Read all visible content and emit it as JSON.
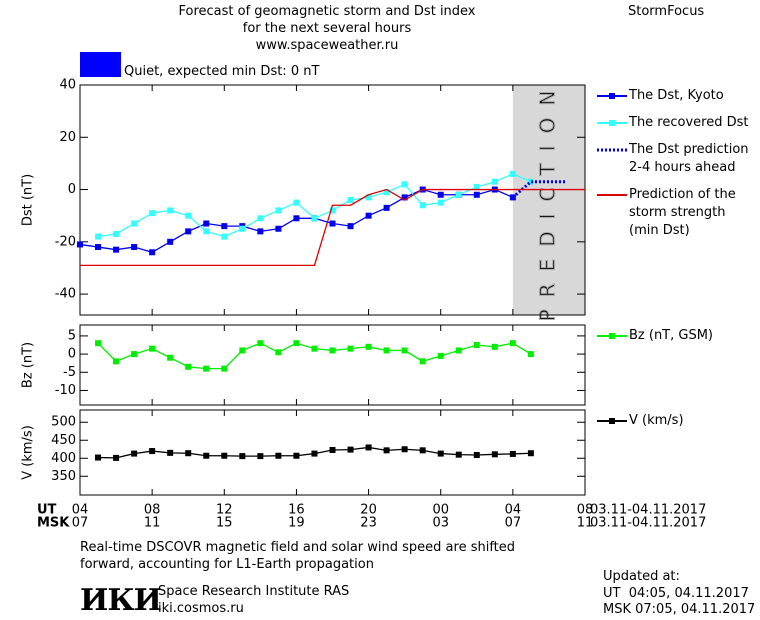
{
  "header": {
    "title": [
      "Forecast of geomagnetic storm and Dst index",
      "for the next several hours",
      "www.spaceweather.ru"
    ],
    "brand": "StormFocus",
    "status": {
      "color": "#0000ff",
      "text": "Quiet, expected min Dst: 0 nT"
    }
  },
  "chart_data": [
    {
      "type": "line",
      "ylabel": "Dst (nT)",
      "xlim": [
        0,
        28
      ],
      "ylim": [
        -48,
        40
      ],
      "yticks": [
        -40,
        -20,
        0,
        20,
        40
      ],
      "prediction_zone": {
        "x": [
          24,
          28
        ],
        "label": "PREDICTION",
        "color": "#d8d8d8"
      },
      "series": [
        {
          "name": "The Dst, Kyoto",
          "color": "#0000ee",
          "marker": "square",
          "x": [
            0,
            1,
            2,
            3,
            4,
            5,
            6,
            7,
            8,
            9,
            10,
            11,
            12,
            13,
            14,
            15,
            16,
            17,
            18,
            19,
            20,
            21,
            22,
            23,
            24
          ],
          "values": [
            -21,
            -22,
            -23,
            -22,
            -24,
            -20,
            -16,
            -13,
            -14,
            -14,
            -16,
            -15,
            -11,
            -11,
            -13,
            -14,
            -10,
            -7,
            -3,
            0,
            -2,
            -2,
            -2,
            0,
            -3
          ]
        },
        {
          "name": "The recovered Dst",
          "color": "#33ffff",
          "marker": "square",
          "x": [
            1,
            2,
            3,
            4,
            5,
            6,
            7,
            8,
            9,
            10,
            11,
            12,
            13,
            14,
            15,
            16,
            17,
            18,
            19,
            20,
            21,
            22,
            23,
            24,
            25
          ],
          "values": [
            -18,
            -17,
            -13,
            -9,
            -8,
            -10,
            -16,
            -18,
            -15,
            -11,
            -8,
            -5,
            -11,
            -8,
            -4,
            -3,
            -1,
            2,
            -6,
            -5,
            -2,
            1,
            3,
            6,
            3
          ]
        },
        {
          "name": "The Dst prediction 2-4 hours ahead",
          "color": "#0000ee",
          "dash": "dotted",
          "x": [
            24,
            25,
            27
          ],
          "values": [
            -3,
            3,
            3
          ]
        },
        {
          "name": "Prediction of the storm strength (min Dst)",
          "color": "#dd0000",
          "x": [
            0,
            13,
            14,
            15,
            16,
            17,
            18,
            19,
            28
          ],
          "values": [
            -29,
            -29,
            -6,
            -6,
            -2,
            0,
            -4,
            0,
            0
          ]
        }
      ]
    },
    {
      "type": "line",
      "ylabel": "Bz (nT)",
      "xlim": [
        0,
        28
      ],
      "ylim": [
        -14,
        8
      ],
      "yticks": [
        -10,
        -5,
        0,
        5
      ],
      "series": [
        {
          "name": "Bz (nT, GSM)",
          "color": "#00ee00",
          "marker": "square",
          "x": [
            1,
            2,
            3,
            4,
            5,
            6,
            7,
            8,
            9,
            10,
            11,
            12,
            13,
            14,
            15,
            16,
            17,
            18,
            19,
            20,
            21,
            22,
            23,
            24,
            25
          ],
          "values": [
            3,
            -2,
            0,
            1.5,
            -1,
            -3.5,
            -4,
            -4,
            1,
            3,
            0.5,
            3,
            1.5,
            1,
            1.5,
            2,
            1,
            1,
            -2,
            -0.5,
            1,
            2.5,
            2,
            3,
            0
          ]
        }
      ]
    },
    {
      "type": "line",
      "ylabel": "V (km/s)",
      "xlim": [
        0,
        28
      ],
      "ylim": [
        298,
        534
      ],
      "yticks": [
        350,
        400,
        450,
        500
      ],
      "xticks": [
        {
          "value": 0,
          "label": "04"
        },
        {
          "value": 4,
          "label": "08"
        },
        {
          "value": 8,
          "label": "12"
        },
        {
          "value": 12,
          "label": "16"
        },
        {
          "value": 16,
          "label": "20"
        },
        {
          "value": 20,
          "label": "00"
        },
        {
          "value": 24,
          "label": "04"
        },
        {
          "value": 28,
          "label": "08"
        }
      ],
      "xticks_msk": [
        {
          "value": 0,
          "label": "07"
        },
        {
          "value": 4,
          "label": "11"
        },
        {
          "value": 8,
          "label": "15"
        },
        {
          "value": 12,
          "label": "19"
        },
        {
          "value": 16,
          "label": "23"
        },
        {
          "value": 20,
          "label": "03"
        },
        {
          "value": 24,
          "label": "07"
        },
        {
          "value": 28,
          "label": "11"
        }
      ],
      "xaxis_ut": "UT",
      "xaxis_msk": "MSK",
      "date_range": [
        "03.11-04.11.2017",
        "03.11-04.11.2017"
      ],
      "series": [
        {
          "name": "V (km/s)",
          "color": "#000000",
          "marker": "square",
          "x": [
            1,
            2,
            3,
            4,
            5,
            6,
            7,
            8,
            9,
            10,
            11,
            12,
            13,
            14,
            15,
            16,
            17,
            18,
            19,
            20,
            21,
            22,
            23,
            24,
            25
          ],
          "values": [
            402,
            401,
            413,
            420,
            415,
            414,
            407,
            407,
            406,
            406,
            407,
            407,
            413,
            423,
            424,
            430,
            422,
            425,
            422,
            413,
            410,
            409,
            411,
            412,
            414
          ]
        }
      ]
    }
  ],
  "footer": {
    "note": [
      "Real-time DSCOVR magnetic field and solar wind speed are shifted",
      "forward, accounting for L1-Earth propagation"
    ],
    "logo": "ИКИ",
    "institute": "Space Research Institute RAS",
    "site": "iki.cosmos.ru",
    "updated": [
      "Updated at:",
      "UT  04:05, 04.11.2017",
      "MSK 07:05, 04.11.2017"
    ]
  }
}
